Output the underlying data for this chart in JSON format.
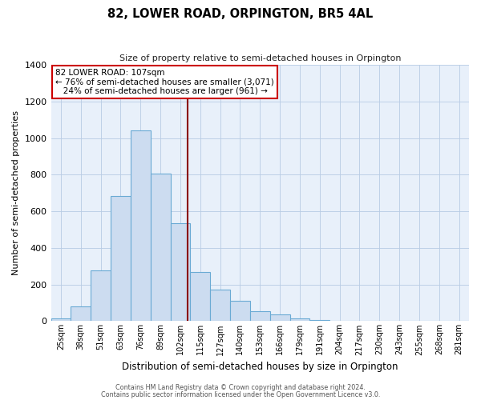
{
  "title": "82, LOWER ROAD, ORPINGTON, BR5 4AL",
  "subtitle": "Size of property relative to semi-detached houses in Orpington",
  "xlabel": "Distribution of semi-detached houses by size in Orpington",
  "ylabel": "Number of semi-detached properties",
  "bin_labels": [
    "25sqm",
    "38sqm",
    "51sqm",
    "63sqm",
    "76sqm",
    "89sqm",
    "102sqm",
    "115sqm",
    "127sqm",
    "140sqm",
    "153sqm",
    "166sqm",
    "179sqm",
    "191sqm",
    "204sqm",
    "217sqm",
    "230sqm",
    "243sqm",
    "255sqm",
    "268sqm",
    "281sqm"
  ],
  "bar_values": [
    15,
    80,
    275,
    685,
    1040,
    805,
    535,
    270,
    170,
    110,
    55,
    38,
    15,
    8,
    3,
    1,
    0,
    0,
    0,
    0,
    1
  ],
  "bar_color": "#ccdcf0",
  "bar_edge_color": "#6aaad4",
  "property_line_x": 6,
  "annotation_text": "82 LOWER ROAD: 107sqm\n← 76% of semi-detached houses are smaller (3,071)\n   24% of semi-detached houses are larger (961) →",
  "annotation_box_color": "#ffffff",
  "annotation_box_edge": "#cc0000",
  "vline_color": "#8b0000",
  "ylim": [
    0,
    1400
  ],
  "yticks": [
    0,
    200,
    400,
    600,
    800,
    1000,
    1200,
    1400
  ],
  "footer1": "Contains HM Land Registry data © Crown copyright and database right 2024.",
  "footer2": "Contains public sector information licensed under the Open Government Licence v3.0.",
  "background_color": "#ffffff",
  "plot_bg_color": "#e8f0fa",
  "grid_color": "#b8cce4"
}
